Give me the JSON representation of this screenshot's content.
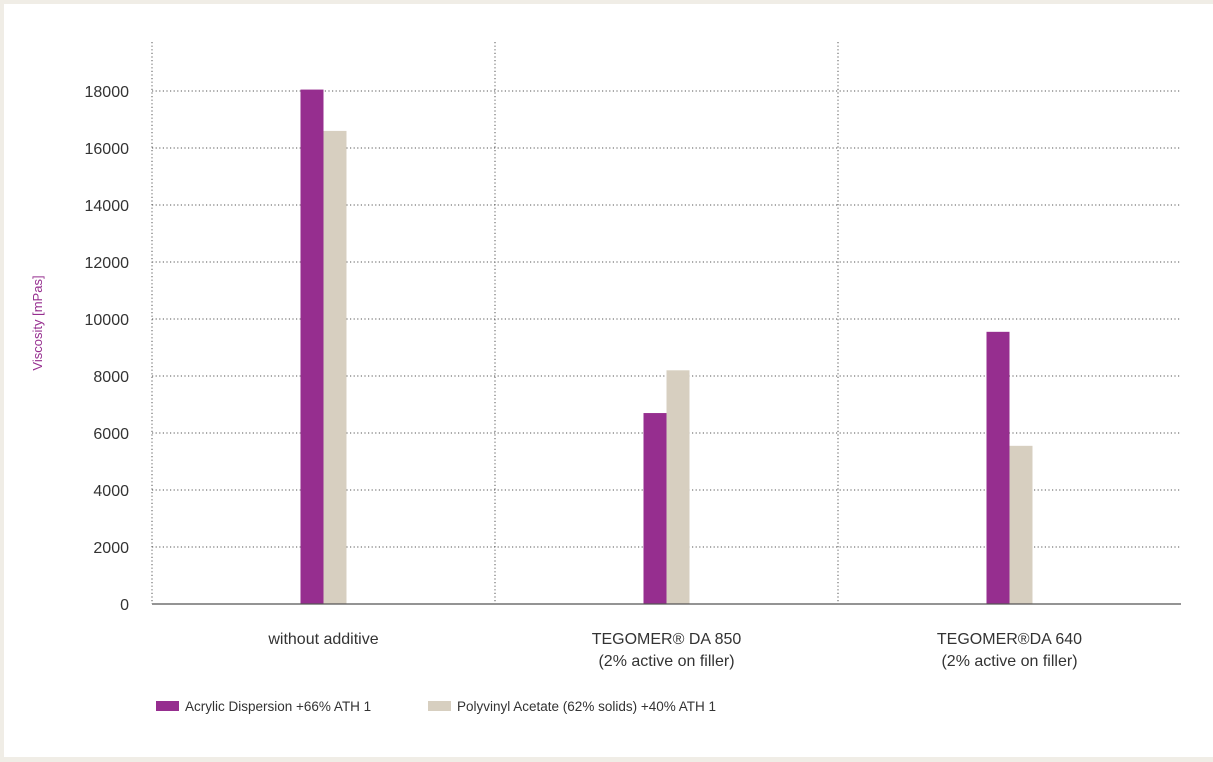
{
  "chart_data": {
    "type": "bar",
    "title": "",
    "xlabel": "",
    "ylabel": "Viscosity [mPas]",
    "ylim": [
      0,
      19000
    ],
    "yticks": [
      0,
      2000,
      4000,
      6000,
      8000,
      10000,
      12000,
      14000,
      16000,
      18000
    ],
    "grid": true,
    "legend_position": "bottom-left",
    "categories": [
      [
        "without additive"
      ],
      [
        "TEGOMER® DA 850",
        "(2% active on filler)"
      ],
      [
        "TEGOMER®DA 640",
        "(2% active on filler)"
      ]
    ],
    "series": [
      {
        "name": "Acrylic Dispersion +66% ATH 1",
        "color": "#962e8f",
        "values": [
          18050,
          6700,
          9550
        ]
      },
      {
        "name": "Polyvinyl Acetate (62% solids) +40% ATH 1",
        "color": "#d7cfc0",
        "values": [
          16600,
          8200,
          5550
        ]
      }
    ]
  },
  "colors": {
    "axis_label": "#962e8f",
    "grid": "#555555",
    "axis": "#555555"
  }
}
